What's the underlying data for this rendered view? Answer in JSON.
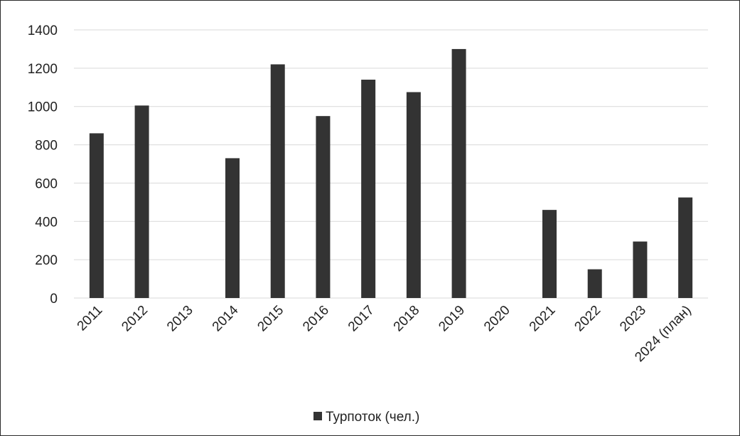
{
  "chart_data": {
    "type": "bar",
    "title": "",
    "xlabel": "",
    "ylabel": "",
    "categories": [
      "2011",
      "2012",
      "2013",
      "2014",
      "2015",
      "2016",
      "2017",
      "2018",
      "2019",
      "2020",
      "2021",
      "2022",
      "2023",
      "2024 (план)"
    ],
    "series": [
      {
        "name": "Турпоток (чел.)",
        "color": "#333333",
        "values": [
          860,
          1005,
          0,
          730,
          1220,
          950,
          1140,
          1075,
          1300,
          0,
          460,
          150,
          295,
          525
        ]
      }
    ],
    "ylim": [
      0,
      1400
    ],
    "yticks": [
      "0",
      "200",
      "400",
      "600",
      "800",
      "1000",
      "1200",
      "1400"
    ],
    "grid": true,
    "legend_position": "bottom"
  }
}
